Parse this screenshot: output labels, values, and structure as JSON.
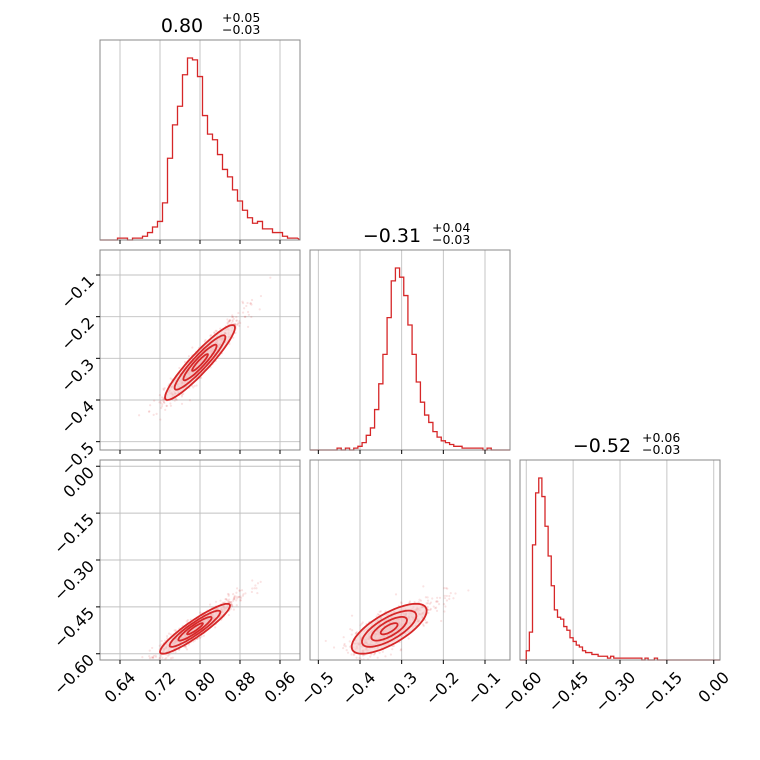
{
  "colors": {
    "line": "#d62728",
    "fill": "#f4c9c9",
    "grid": "#c0c0c0",
    "frame": "#888888"
  },
  "chart_data": [
    {
      "type": "histogram",
      "panel": "p11",
      "title": {
        "base": "0.80",
        "sup": "+0.05",
        "sub": "−0.03"
      },
      "xlim": [
        0.6,
        1.0
      ],
      "gridlines_x": [
        0.64,
        0.72,
        0.8,
        0.88,
        0.96
      ],
      "bin_centers": [
        0.62,
        0.63,
        0.64,
        0.65,
        0.66,
        0.67,
        0.68,
        0.69,
        0.7,
        0.71,
        0.72,
        0.73,
        0.74,
        0.75,
        0.76,
        0.77,
        0.78,
        0.79,
        0.8,
        0.81,
        0.82,
        0.83,
        0.84,
        0.85,
        0.86,
        0.87,
        0.88,
        0.89,
        0.9,
        0.91,
        0.92,
        0.93,
        0.94,
        0.95,
        0.96,
        0.97,
        0.98,
        0.99
      ],
      "values": [
        0,
        0,
        0.01,
        0.01,
        0,
        0.01,
        0.01,
        0.02,
        0.04,
        0.07,
        0.1,
        0.2,
        0.44,
        0.62,
        0.72,
        0.89,
        0.98,
        0.97,
        0.88,
        0.67,
        0.57,
        0.54,
        0.46,
        0.38,
        0.34,
        0.27,
        0.21,
        0.16,
        0.12,
        0.09,
        0.1,
        0.06,
        0.06,
        0.04,
        0.04,
        0.02,
        0.01,
        0.01
      ]
    },
    {
      "type": "scatter_contour",
      "panel": "p21",
      "xlim": [
        0.6,
        1.0
      ],
      "ylim": [
        -0.52,
        -0.04
      ],
      "gridlines_x": [
        0.64,
        0.72,
        0.8,
        0.88,
        0.96
      ],
      "yticks": [
        -0.1,
        -0.2,
        -0.3,
        -0.4,
        -0.5
      ],
      "ytick_labels": [
        "−0.1",
        "−0.2",
        "−0.3",
        "−0.4",
        "−0.5"
      ],
      "density": {
        "mean": [
          0.8,
          -0.31
        ],
        "sd": [
          0.035,
          0.045
        ],
        "corr": 0.93
      }
    },
    {
      "type": "histogram",
      "panel": "p22",
      "title": {
        "base": "−0.31",
        "sup": "+0.04",
        "sub": "−0.03"
      },
      "xlim": [
        -0.52,
        -0.04
      ],
      "gridlines_x": [
        -0.5,
        -0.4,
        -0.3,
        -0.2,
        -0.1
      ],
      "bin_centers": [
        -0.48,
        -0.47,
        -0.46,
        -0.45,
        -0.44,
        -0.43,
        -0.42,
        -0.41,
        -0.4,
        -0.39,
        -0.38,
        -0.37,
        -0.36,
        -0.35,
        -0.34,
        -0.33,
        -0.32,
        -0.31,
        -0.3,
        -0.29,
        -0.28,
        -0.27,
        -0.26,
        -0.25,
        -0.24,
        -0.23,
        -0.22,
        -0.21,
        -0.2,
        -0.19,
        -0.18,
        -0.17,
        -0.16,
        -0.15,
        -0.14,
        -0.13,
        -0.12,
        -0.11,
        -0.1,
        -0.09,
        -0.08,
        -0.07,
        -0.06
      ],
      "values": [
        0,
        0,
        0,
        0.01,
        0,
        0.01,
        0,
        0.01,
        0.02,
        0.04,
        0.08,
        0.12,
        0.22,
        0.36,
        0.52,
        0.72,
        0.92,
        0.99,
        0.94,
        0.84,
        0.68,
        0.52,
        0.37,
        0.26,
        0.19,
        0.15,
        0.1,
        0.07,
        0.05,
        0.04,
        0.03,
        0.02,
        0.02,
        0.01,
        0.01,
        0.01,
        0.01,
        0.01,
        0,
        0.01,
        0,
        0,
        0
      ]
    },
    {
      "type": "scatter_contour",
      "panel": "p31",
      "xlim": [
        0.6,
        1.0
      ],
      "ylim": [
        -0.62,
        0.02
      ],
      "gridlines_x": [
        0.64,
        0.72,
        0.8,
        0.88,
        0.96
      ],
      "xticks": [
        0.64,
        0.72,
        0.8,
        0.88,
        0.96
      ],
      "xtick_labels": [
        "0.64",
        "0.72",
        "0.80",
        "0.88",
        "0.96"
      ],
      "yticks": [
        0.0,
        -0.15,
        -0.3,
        -0.45,
        -0.6
      ],
      "ytick_labels": [
        "0.00",
        "−0.15",
        "−0.30",
        "−0.45",
        "−0.60"
      ],
      "density": {
        "mean": [
          0.79,
          -0.52
        ],
        "sd": [
          0.035,
          0.04
        ],
        "corr": 0.92
      }
    },
    {
      "type": "scatter_contour",
      "panel": "p32",
      "xlim": [
        -0.52,
        -0.04
      ],
      "ylim": [
        -0.62,
        0.02
      ],
      "gridlines_x": [
        -0.5,
        -0.4,
        -0.3,
        -0.2,
        -0.1
      ],
      "xticks": [
        -0.5,
        -0.4,
        -0.3,
        -0.2,
        -0.1
      ],
      "xtick_labels": [
        "−0.5",
        "−0.4",
        "−0.3",
        "−0.2",
        "−0.1"
      ],
      "density": {
        "mean": [
          -0.33,
          -0.52
        ],
        "sd": [
          0.045,
          0.04
        ],
        "corr": 0.72
      }
    },
    {
      "type": "histogram",
      "panel": "p33",
      "title": {
        "base": "−0.52",
        "sup": "+0.06",
        "sub": "−0.03"
      },
      "xlim": [
        -0.62,
        0.02
      ],
      "gridlines_x": [
        -0.6,
        -0.45,
        -0.3,
        -0.15,
        0.0
      ],
      "xticks": [
        -0.6,
        -0.45,
        -0.3,
        -0.15,
        0.0
      ],
      "xtick_labels": [
        "−0.60",
        "−0.45",
        "−0.30",
        "−0.15",
        "0.00"
      ],
      "bin_centers": [
        -0.605,
        -0.595,
        -0.585,
        -0.575,
        -0.565,
        -0.555,
        -0.545,
        -0.535,
        -0.525,
        -0.515,
        -0.505,
        -0.495,
        -0.485,
        -0.475,
        -0.465,
        -0.455,
        -0.445,
        -0.435,
        -0.425,
        -0.415,
        -0.405,
        -0.395,
        -0.385,
        -0.375,
        -0.365,
        -0.355,
        -0.345,
        -0.335,
        -0.325,
        -0.315,
        -0.305,
        -0.295,
        -0.285,
        -0.275,
        -0.265,
        -0.255,
        -0.245,
        -0.235,
        -0.225,
        -0.215,
        -0.205,
        -0.195,
        -0.185,
        -0.175,
        -0.165
      ],
      "values": [
        0,
        0.05,
        0.15,
        0.62,
        0.9,
        0.98,
        0.88,
        0.72,
        0.56,
        0.4,
        0.27,
        0.23,
        0.22,
        0.18,
        0.16,
        0.12,
        0.1,
        0.08,
        0.07,
        0.05,
        0.04,
        0.04,
        0.03,
        0.03,
        0.02,
        0.02,
        0.02,
        0.01,
        0.02,
        0.01,
        0.01,
        0.01,
        0.01,
        0.01,
        0.01,
        0.01,
        0.01,
        0.01,
        0,
        0.01,
        0,
        0,
        0.01,
        0,
        0
      ]
    }
  ]
}
